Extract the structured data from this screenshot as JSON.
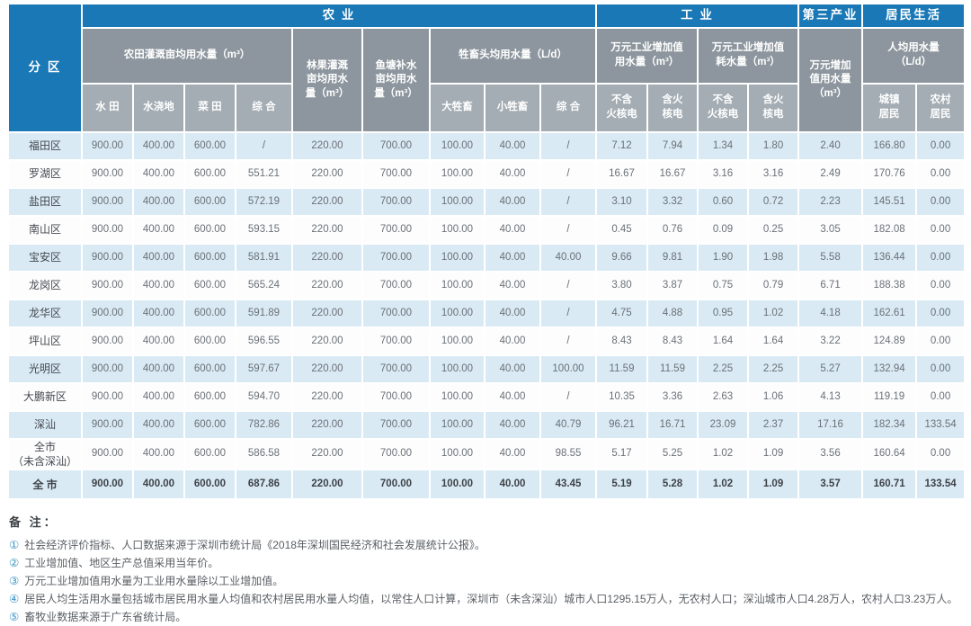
{
  "colors": {
    "header_blue": "#1978b5",
    "subheader_gray": "#8d969e",
    "subheader_light_gray": "#a4adb4",
    "row_stripe_blue": "#d9eaf5",
    "row_white": "#fdfdfe",
    "note_number_blue": "#3d95c5"
  },
  "header": {
    "corner": "分 区",
    "groups": {
      "agriculture": "农 业",
      "industry": "工 业",
      "tertiary": "第三产业",
      "residential": "居民生活"
    },
    "sub": {
      "farmland": "农田灌溉亩均用水量（m³）",
      "forest": "林果灌溉\n亩均用水\n量（m³）",
      "fishpond": "鱼塘补水\n亩均用水\n量（m³）",
      "livestock": "牲畜头均用水量（L/d）",
      "industry_use": "万元工业增加值\n用水量（m³）",
      "industry_consume": "万元工业增加值\n耗水量（m³）",
      "tertiary_use": "万元增加\n值用水量\n（m³）",
      "per_capita": "人均用水量\n（L/d）"
    },
    "cols": [
      "水 田",
      "水浇地",
      "菜 田",
      "综 合",
      "大牲畜",
      "小牲畜",
      "综 合",
      "不含\n火核电",
      "含火\n核电",
      "不含\n火核电",
      "含火\n核电",
      "城镇\n居民",
      "农村\n居民"
    ]
  },
  "table": {
    "rows": [
      {
        "district": "福田区",
        "values": [
          "900.00",
          "400.00",
          "600.00",
          "/",
          "220.00",
          "700.00",
          "100.00",
          "40.00",
          "/",
          "7.12",
          "7.94",
          "1.34",
          "1.80",
          "2.40",
          "166.80",
          "0.00"
        ]
      },
      {
        "district": "罗湖区",
        "values": [
          "900.00",
          "400.00",
          "600.00",
          "551.21",
          "220.00",
          "700.00",
          "100.00",
          "40.00",
          "/",
          "16.67",
          "16.67",
          "3.16",
          "3.16",
          "2.49",
          "170.76",
          "0.00"
        ]
      },
      {
        "district": "盐田区",
        "values": [
          "900.00",
          "400.00",
          "600.00",
          "572.19",
          "220.00",
          "700.00",
          "100.00",
          "40.00",
          "/",
          "3.10",
          "3.32",
          "0.60",
          "0.72",
          "2.23",
          "145.51",
          "0.00"
        ]
      },
      {
        "district": "南山区",
        "values": [
          "900.00",
          "400.00",
          "600.00",
          "593.15",
          "220.00",
          "700.00",
          "100.00",
          "40.00",
          "/",
          "0.45",
          "0.76",
          "0.09",
          "0.25",
          "3.05",
          "182.08",
          "0.00"
        ]
      },
      {
        "district": "宝安区",
        "values": [
          "900.00",
          "400.00",
          "600.00",
          "581.91",
          "220.00",
          "700.00",
          "100.00",
          "40.00",
          "40.00",
          "9.66",
          "9.81",
          "1.90",
          "1.98",
          "5.58",
          "136.44",
          "0.00"
        ]
      },
      {
        "district": "龙岗区",
        "values": [
          "900.00",
          "400.00",
          "600.00",
          "565.24",
          "220.00",
          "700.00",
          "100.00",
          "40.00",
          "/",
          "3.80",
          "3.87",
          "0.75",
          "0.79",
          "6.71",
          "188.38",
          "0.00"
        ]
      },
      {
        "district": "龙华区",
        "values": [
          "900.00",
          "400.00",
          "600.00",
          "591.89",
          "220.00",
          "700.00",
          "100.00",
          "40.00",
          "/",
          "4.75",
          "4.88",
          "0.95",
          "1.02",
          "4.18",
          "162.61",
          "0.00"
        ]
      },
      {
        "district": "坪山区",
        "values": [
          "900.00",
          "400.00",
          "600.00",
          "596.55",
          "220.00",
          "700.00",
          "100.00",
          "40.00",
          "/",
          "8.43",
          "8.43",
          "1.64",
          "1.64",
          "3.22",
          "124.89",
          "0.00"
        ]
      },
      {
        "district": "光明区",
        "values": [
          "900.00",
          "400.00",
          "600.00",
          "597.67",
          "220.00",
          "700.00",
          "100.00",
          "40.00",
          "100.00",
          "11.59",
          "11.59",
          "2.25",
          "2.25",
          "5.27",
          "132.94",
          "0.00"
        ]
      },
      {
        "district": "大鹏新区",
        "values": [
          "900.00",
          "400.00",
          "600.00",
          "594.70",
          "220.00",
          "700.00",
          "100.00",
          "40.00",
          "/",
          "10.35",
          "3.36",
          "2.63",
          "1.06",
          "4.13",
          "119.19",
          "0.00"
        ]
      },
      {
        "district": "深汕",
        "values": [
          "900.00",
          "400.00",
          "600.00",
          "782.86",
          "220.00",
          "700.00",
          "100.00",
          "40.00",
          "40.79",
          "96.21",
          "16.71",
          "23.09",
          "2.37",
          "17.16",
          "182.34",
          "133.54"
        ]
      },
      {
        "district": "全市\n（未含深汕）",
        "values": [
          "900.00",
          "400.00",
          "600.00",
          "586.58",
          "220.00",
          "700.00",
          "100.00",
          "40.00",
          "98.55",
          "5.17",
          "5.25",
          "1.02",
          "1.09",
          "3.56",
          "160.64",
          "0.00"
        ]
      },
      {
        "district": "全 市",
        "bold": true,
        "values": [
          "900.00",
          "400.00",
          "600.00",
          "687.86",
          "220.00",
          "700.00",
          "100.00",
          "40.00",
          "43.45",
          "5.19",
          "5.28",
          "1.02",
          "1.09",
          "3.57",
          "160.71",
          "133.54"
        ]
      }
    ]
  },
  "notes": {
    "title": "备 注：",
    "items": [
      {
        "num": "①",
        "text": "社会经济评价指标、人口数据来源于深圳市统计局《2018年深圳国民经济和社会发展统计公报》。"
      },
      {
        "num": "②",
        "text": "工业增加值、地区生产总值采用当年价。"
      },
      {
        "num": "③",
        "text": "万元工业增加值用水量为工业用水量除以工业增加值。"
      },
      {
        "num": "④",
        "text": "居民人均生活用水量包括城市居民用水量人均值和农村居民用水量人均值，以常住人口计算，深圳市（未含深汕）城市人口1295.15万人，无农村人口；深汕城市人口4.28万人，农村人口3.23万人。"
      },
      {
        "num": "⑤",
        "text": "畜牧业数据来源于广东省统计局。"
      }
    ]
  }
}
